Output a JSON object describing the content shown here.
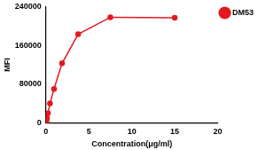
{
  "chart_data": {
    "type": "line",
    "x_label": "Concentration(μg/ml)",
    "y_label": "MFI",
    "x": [
      0.029,
      0.059,
      0.117,
      0.234,
      0.469,
      0.938,
      1.875,
      3.75,
      7.5,
      15
    ],
    "series": [
      {
        "name": "DM53",
        "color": "#e3191f",
        "marker": "circle",
        "line_style": "solid",
        "values": [
          2500,
          5000,
          10000,
          20000,
          40000,
          70000,
          123000,
          183000,
          218000,
          217000
        ]
      }
    ],
    "xlim": [
      0,
      20
    ],
    "xticks": [
      0,
      5,
      10,
      15,
      20
    ],
    "ylim": [
      0,
      240000
    ],
    "yticks": [
      0,
      80000,
      160000,
      240000
    ],
    "grid": false,
    "legend": "right"
  }
}
